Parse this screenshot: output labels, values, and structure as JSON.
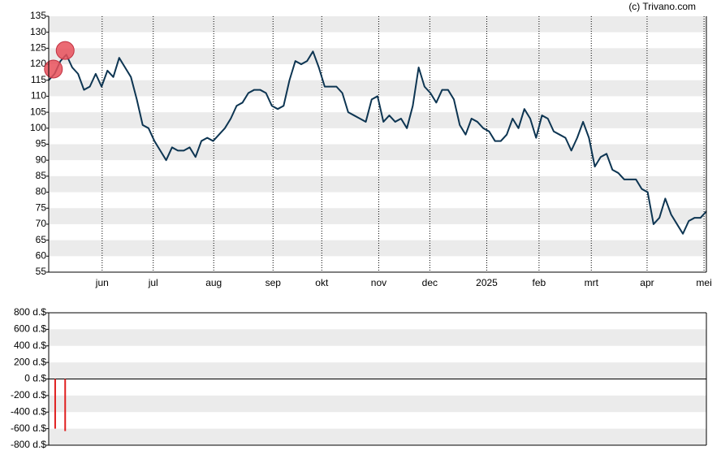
{
  "chart_data": [
    {
      "type": "line",
      "credit": "(c) Trivano.com",
      "series": [
        {
          "color": "#0d3552",
          "values": [
            115,
            117,
            121,
            123,
            119,
            117,
            112,
            113,
            117,
            113,
            118,
            116,
            122,
            119,
            116,
            109,
            101,
            100,
            96,
            93,
            90,
            94,
            93,
            93,
            94,
            91,
            96,
            97,
            96,
            98,
            100,
            103,
            107,
            108,
            111,
            112,
            112,
            111,
            107,
            106,
            107,
            115,
            121,
            120,
            121,
            124,
            119,
            113,
            113,
            113,
            111,
            105,
            104,
            103,
            102,
            109,
            110,
            102,
            104,
            102,
            103,
            100,
            107,
            119,
            113,
            111,
            108,
            112,
            112,
            109,
            101,
            98,
            103,
            102,
            100,
            99,
            96,
            96,
            98,
            103,
            100,
            106,
            103,
            97,
            104,
            103,
            99,
            98,
            97,
            93,
            97,
            102,
            97,
            88,
            91,
            92,
            87,
            86,
            84,
            84,
            84,
            81,
            80,
            70,
            72,
            78,
            73,
            70,
            67,
            71,
            72,
            72,
            74
          ]
        }
      ],
      "markers": {
        "color": "#e8505b",
        "x": [
          0.8,
          2.8
        ],
        "values": [
          118.5,
          124.3
        ]
      },
      "xlim": [
        0,
        112
      ],
      "xticks": [
        {
          "value": 9.1,
          "label": "jun"
        },
        {
          "value": 17.8,
          "label": "jul"
        },
        {
          "value": 28.1,
          "label": "aug"
        },
        {
          "value": 38.2,
          "label": "sep"
        },
        {
          "value": 46.5,
          "label": "okt"
        },
        {
          "value": 56.2,
          "label": "nov"
        },
        {
          "value": 64.9,
          "label": "dec"
        },
        {
          "value": 74.6,
          "label": "2025"
        },
        {
          "value": 83.5,
          "label": "feb"
        },
        {
          "value": 92.4,
          "label": "mrt"
        },
        {
          "value": 101.9,
          "label": "apr"
        },
        {
          "value": 111.6,
          "label": "mei"
        }
      ],
      "ylim": [
        55,
        135
      ],
      "yticks": [
        55,
        60,
        65,
        70,
        75,
        80,
        85,
        90,
        95,
        100,
        105,
        110,
        115,
        120,
        125,
        130,
        135
      ]
    },
    {
      "type": "bar",
      "x": [
        1.1,
        2.8
      ],
      "values": [
        -600,
        -630
      ],
      "color": "#e02020",
      "xlim": [
        0,
        112
      ],
      "ylim": [
        -800,
        800
      ],
      "yticks": [
        {
          "value": -800,
          "label": "-800 d.$"
        },
        {
          "value": -600,
          "label": "-600 d.$"
        },
        {
          "value": -400,
          "label": "-400 d.$"
        },
        {
          "value": -200,
          "label": "-200 d.$"
        },
        {
          "value": 0,
          "label": "0 d.$"
        },
        {
          "value": 200,
          "label": "200 d.$"
        },
        {
          "value": 400,
          "label": "400 d.$"
        },
        {
          "value": 600,
          "label": "600 d.$"
        },
        {
          "value": 800,
          "label": "800 d.$"
        }
      ]
    }
  ]
}
